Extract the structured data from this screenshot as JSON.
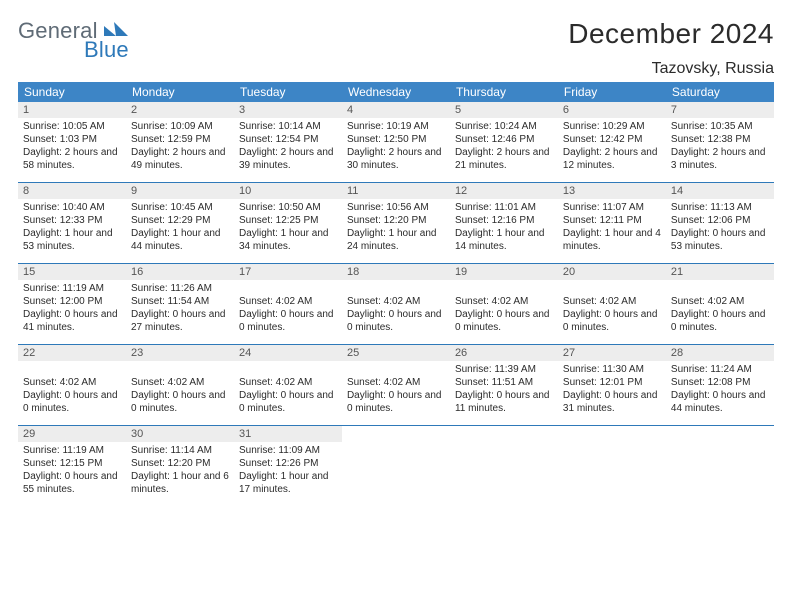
{
  "logo": {
    "general": "General",
    "blue": "Blue"
  },
  "header": {
    "title": "December 2024",
    "location": "Tazovsky, Russia"
  },
  "theme": {
    "header_bg": "#3d85c6",
    "header_text": "#ffffff",
    "daynum_bg": "#ededed",
    "daynum_text": "#555555",
    "border": "#2e79b9",
    "body_text": "#2b2b2b",
    "page_bg": "#ffffff"
  },
  "weekdays": [
    "Sunday",
    "Monday",
    "Tuesday",
    "Wednesday",
    "Thursday",
    "Friday",
    "Saturday"
  ],
  "weeks": [
    [
      {
        "n": "1",
        "sunrise": "Sunrise: 10:05 AM",
        "sunset": "Sunset: 1:03 PM",
        "daylight": "Daylight: 2 hours and 58 minutes."
      },
      {
        "n": "2",
        "sunrise": "Sunrise: 10:09 AM",
        "sunset": "Sunset: 12:59 PM",
        "daylight": "Daylight: 2 hours and 49 minutes."
      },
      {
        "n": "3",
        "sunrise": "Sunrise: 10:14 AM",
        "sunset": "Sunset: 12:54 PM",
        "daylight": "Daylight: 2 hours and 39 minutes."
      },
      {
        "n": "4",
        "sunrise": "Sunrise: 10:19 AM",
        "sunset": "Sunset: 12:50 PM",
        "daylight": "Daylight: 2 hours and 30 minutes."
      },
      {
        "n": "5",
        "sunrise": "Sunrise: 10:24 AM",
        "sunset": "Sunset: 12:46 PM",
        "daylight": "Daylight: 2 hours and 21 minutes."
      },
      {
        "n": "6",
        "sunrise": "Sunrise: 10:29 AM",
        "sunset": "Sunset: 12:42 PM",
        "daylight": "Daylight: 2 hours and 12 minutes."
      },
      {
        "n": "7",
        "sunrise": "Sunrise: 10:35 AM",
        "sunset": "Sunset: 12:38 PM",
        "daylight": "Daylight: 2 hours and 3 minutes."
      }
    ],
    [
      {
        "n": "8",
        "sunrise": "Sunrise: 10:40 AM",
        "sunset": "Sunset: 12:33 PM",
        "daylight": "Daylight: 1 hour and 53 minutes."
      },
      {
        "n": "9",
        "sunrise": "Sunrise: 10:45 AM",
        "sunset": "Sunset: 12:29 PM",
        "daylight": "Daylight: 1 hour and 44 minutes."
      },
      {
        "n": "10",
        "sunrise": "Sunrise: 10:50 AM",
        "sunset": "Sunset: 12:25 PM",
        "daylight": "Daylight: 1 hour and 34 minutes."
      },
      {
        "n": "11",
        "sunrise": "Sunrise: 10:56 AM",
        "sunset": "Sunset: 12:20 PM",
        "daylight": "Daylight: 1 hour and 24 minutes."
      },
      {
        "n": "12",
        "sunrise": "Sunrise: 11:01 AM",
        "sunset": "Sunset: 12:16 PM",
        "daylight": "Daylight: 1 hour and 14 minutes."
      },
      {
        "n": "13",
        "sunrise": "Sunrise: 11:07 AM",
        "sunset": "Sunset: 12:11 PM",
        "daylight": "Daylight: 1 hour and 4 minutes."
      },
      {
        "n": "14",
        "sunrise": "Sunrise: 11:13 AM",
        "sunset": "Sunset: 12:06 PM",
        "daylight": "Daylight: 0 hours and 53 minutes."
      }
    ],
    [
      {
        "n": "15",
        "sunrise": "Sunrise: 11:19 AM",
        "sunset": "Sunset: 12:00 PM",
        "daylight": "Daylight: 0 hours and 41 minutes."
      },
      {
        "n": "16",
        "sunrise": "Sunrise: 11:26 AM",
        "sunset": "Sunset: 11:54 AM",
        "daylight": "Daylight: 0 hours and 27 minutes."
      },
      {
        "n": "17",
        "sunrise": "",
        "sunset": "Sunset: 4:02 AM",
        "daylight": "Daylight: 0 hours and 0 minutes."
      },
      {
        "n": "18",
        "sunrise": "",
        "sunset": "Sunset: 4:02 AM",
        "daylight": "Daylight: 0 hours and 0 minutes."
      },
      {
        "n": "19",
        "sunrise": "",
        "sunset": "Sunset: 4:02 AM",
        "daylight": "Daylight: 0 hours and 0 minutes."
      },
      {
        "n": "20",
        "sunrise": "",
        "sunset": "Sunset: 4:02 AM",
        "daylight": "Daylight: 0 hours and 0 minutes."
      },
      {
        "n": "21",
        "sunrise": "",
        "sunset": "Sunset: 4:02 AM",
        "daylight": "Daylight: 0 hours and 0 minutes."
      }
    ],
    [
      {
        "n": "22",
        "sunrise": "",
        "sunset": "Sunset: 4:02 AM",
        "daylight": "Daylight: 0 hours and 0 minutes."
      },
      {
        "n": "23",
        "sunrise": "",
        "sunset": "Sunset: 4:02 AM",
        "daylight": "Daylight: 0 hours and 0 minutes."
      },
      {
        "n": "24",
        "sunrise": "",
        "sunset": "Sunset: 4:02 AM",
        "daylight": "Daylight: 0 hours and 0 minutes."
      },
      {
        "n": "25",
        "sunrise": "",
        "sunset": "Sunset: 4:02 AM",
        "daylight": "Daylight: 0 hours and 0 minutes."
      },
      {
        "n": "26",
        "sunrise": "Sunrise: 11:39 AM",
        "sunset": "Sunset: 11:51 AM",
        "daylight": "Daylight: 0 hours and 11 minutes."
      },
      {
        "n": "27",
        "sunrise": "Sunrise: 11:30 AM",
        "sunset": "Sunset: 12:01 PM",
        "daylight": "Daylight: 0 hours and 31 minutes."
      },
      {
        "n": "28",
        "sunrise": "Sunrise: 11:24 AM",
        "sunset": "Sunset: 12:08 PM",
        "daylight": "Daylight: 0 hours and 44 minutes."
      }
    ],
    [
      {
        "n": "29",
        "sunrise": "Sunrise: 11:19 AM",
        "sunset": "Sunset: 12:15 PM",
        "daylight": "Daylight: 0 hours and 55 minutes."
      },
      {
        "n": "30",
        "sunrise": "Sunrise: 11:14 AM",
        "sunset": "Sunset: 12:20 PM",
        "daylight": "Daylight: 1 hour and 6 minutes."
      },
      {
        "n": "31",
        "sunrise": "Sunrise: 11:09 AM",
        "sunset": "Sunset: 12:26 PM",
        "daylight": "Daylight: 1 hour and 17 minutes."
      },
      null,
      null,
      null,
      null
    ]
  ]
}
